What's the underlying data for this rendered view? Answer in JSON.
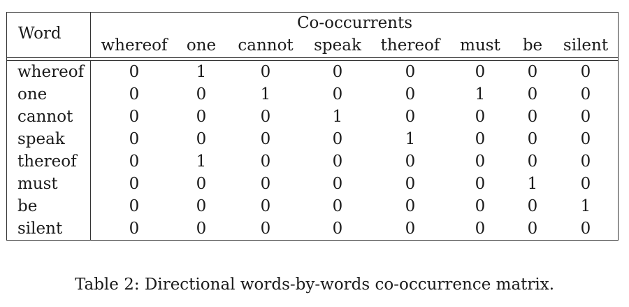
{
  "table": {
    "word_header": "Word",
    "group_header": "Co-occurrents",
    "columns": [
      "whereof",
      "one",
      "cannot",
      "speak",
      "thereof",
      "must",
      "be",
      "silent"
    ],
    "rows": [
      {
        "label": "whereof",
        "values": [
          "0",
          "1",
          "0",
          "0",
          "0",
          "0",
          "0",
          "0"
        ]
      },
      {
        "label": "one",
        "values": [
          "0",
          "0",
          "1",
          "0",
          "0",
          "1",
          "0",
          "0"
        ]
      },
      {
        "label": "cannot",
        "values": [
          "0",
          "0",
          "0",
          "1",
          "0",
          "0",
          "0",
          "0"
        ]
      },
      {
        "label": "speak",
        "values": [
          "0",
          "0",
          "0",
          "0",
          "1",
          "0",
          "0",
          "0"
        ]
      },
      {
        "label": "thereof",
        "values": [
          "0",
          "1",
          "0",
          "0",
          "0",
          "0",
          "0",
          "0"
        ]
      },
      {
        "label": "must",
        "values": [
          "0",
          "0",
          "0",
          "0",
          "0",
          "0",
          "1",
          "0"
        ]
      },
      {
        "label": "be",
        "values": [
          "0",
          "0",
          "0",
          "0",
          "0",
          "0",
          "0",
          "1"
        ]
      },
      {
        "label": "silent",
        "values": [
          "0",
          "0",
          "0",
          "0",
          "0",
          "0",
          "0",
          "0"
        ]
      }
    ]
  },
  "caption": "Table 2: Directional words-by-words co-occurrence matrix."
}
